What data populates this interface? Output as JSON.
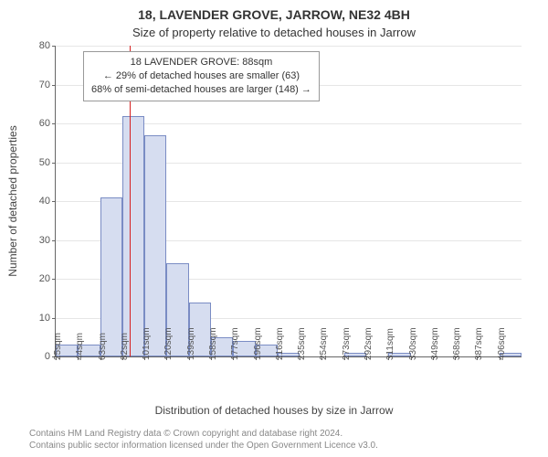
{
  "title_line1": "18, LAVENDER GROVE, JARROW, NE32 4BH",
  "title_line2": "Size of property relative to detached houses in Jarrow",
  "y_axis_label": "Number of detached properties",
  "x_axis_label": "Distribution of detached houses by size in Jarrow",
  "footer_line1": "Contains HM Land Registry data © Crown copyright and database right 2024.",
  "footer_line2": "Contains public sector information licensed under the Open Government Licence v3.0.",
  "chart": {
    "type": "histogram",
    "ylim": [
      0,
      80
    ],
    "ytick_step": 10,
    "gridline_color": "#e6e6e6",
    "axis_color": "#666666",
    "bar_fill": "#d6ddf0",
    "bar_border": "#7a8cc4",
    "background_color": "#ffffff",
    "marker": {
      "value_sqm": 88,
      "color": "#d62020"
    },
    "annotation": {
      "line1": "18 LAVENDER GROVE: 88sqm",
      "line2": "← 29% of detached houses are smaller (63)",
      "line3": "68% of semi-detached houses are larger (148) →"
    },
    "x_start": 25,
    "x_step": 19,
    "x_unit": "sqm",
    "bars": [
      {
        "x": 25,
        "count": 3
      },
      {
        "x": 44,
        "count": 3
      },
      {
        "x": 63,
        "count": 41
      },
      {
        "x": 82,
        "count": 62
      },
      {
        "x": 101,
        "count": 57
      },
      {
        "x": 120,
        "count": 24
      },
      {
        "x": 139,
        "count": 14
      },
      {
        "x": 158,
        "count": 5
      },
      {
        "x": 177,
        "count": 4
      },
      {
        "x": 196,
        "count": 3
      },
      {
        "x": 216,
        "count": 1
      },
      {
        "x": 235,
        "count": 0
      },
      {
        "x": 254,
        "count": 0
      },
      {
        "x": 273,
        "count": 1
      },
      {
        "x": 292,
        "count": 0
      },
      {
        "x": 311,
        "count": 1
      },
      {
        "x": 330,
        "count": 0
      },
      {
        "x": 349,
        "count": 0
      },
      {
        "x": 368,
        "count": 0
      },
      {
        "x": 387,
        "count": 0
      },
      {
        "x": 406,
        "count": 1
      }
    ]
  }
}
